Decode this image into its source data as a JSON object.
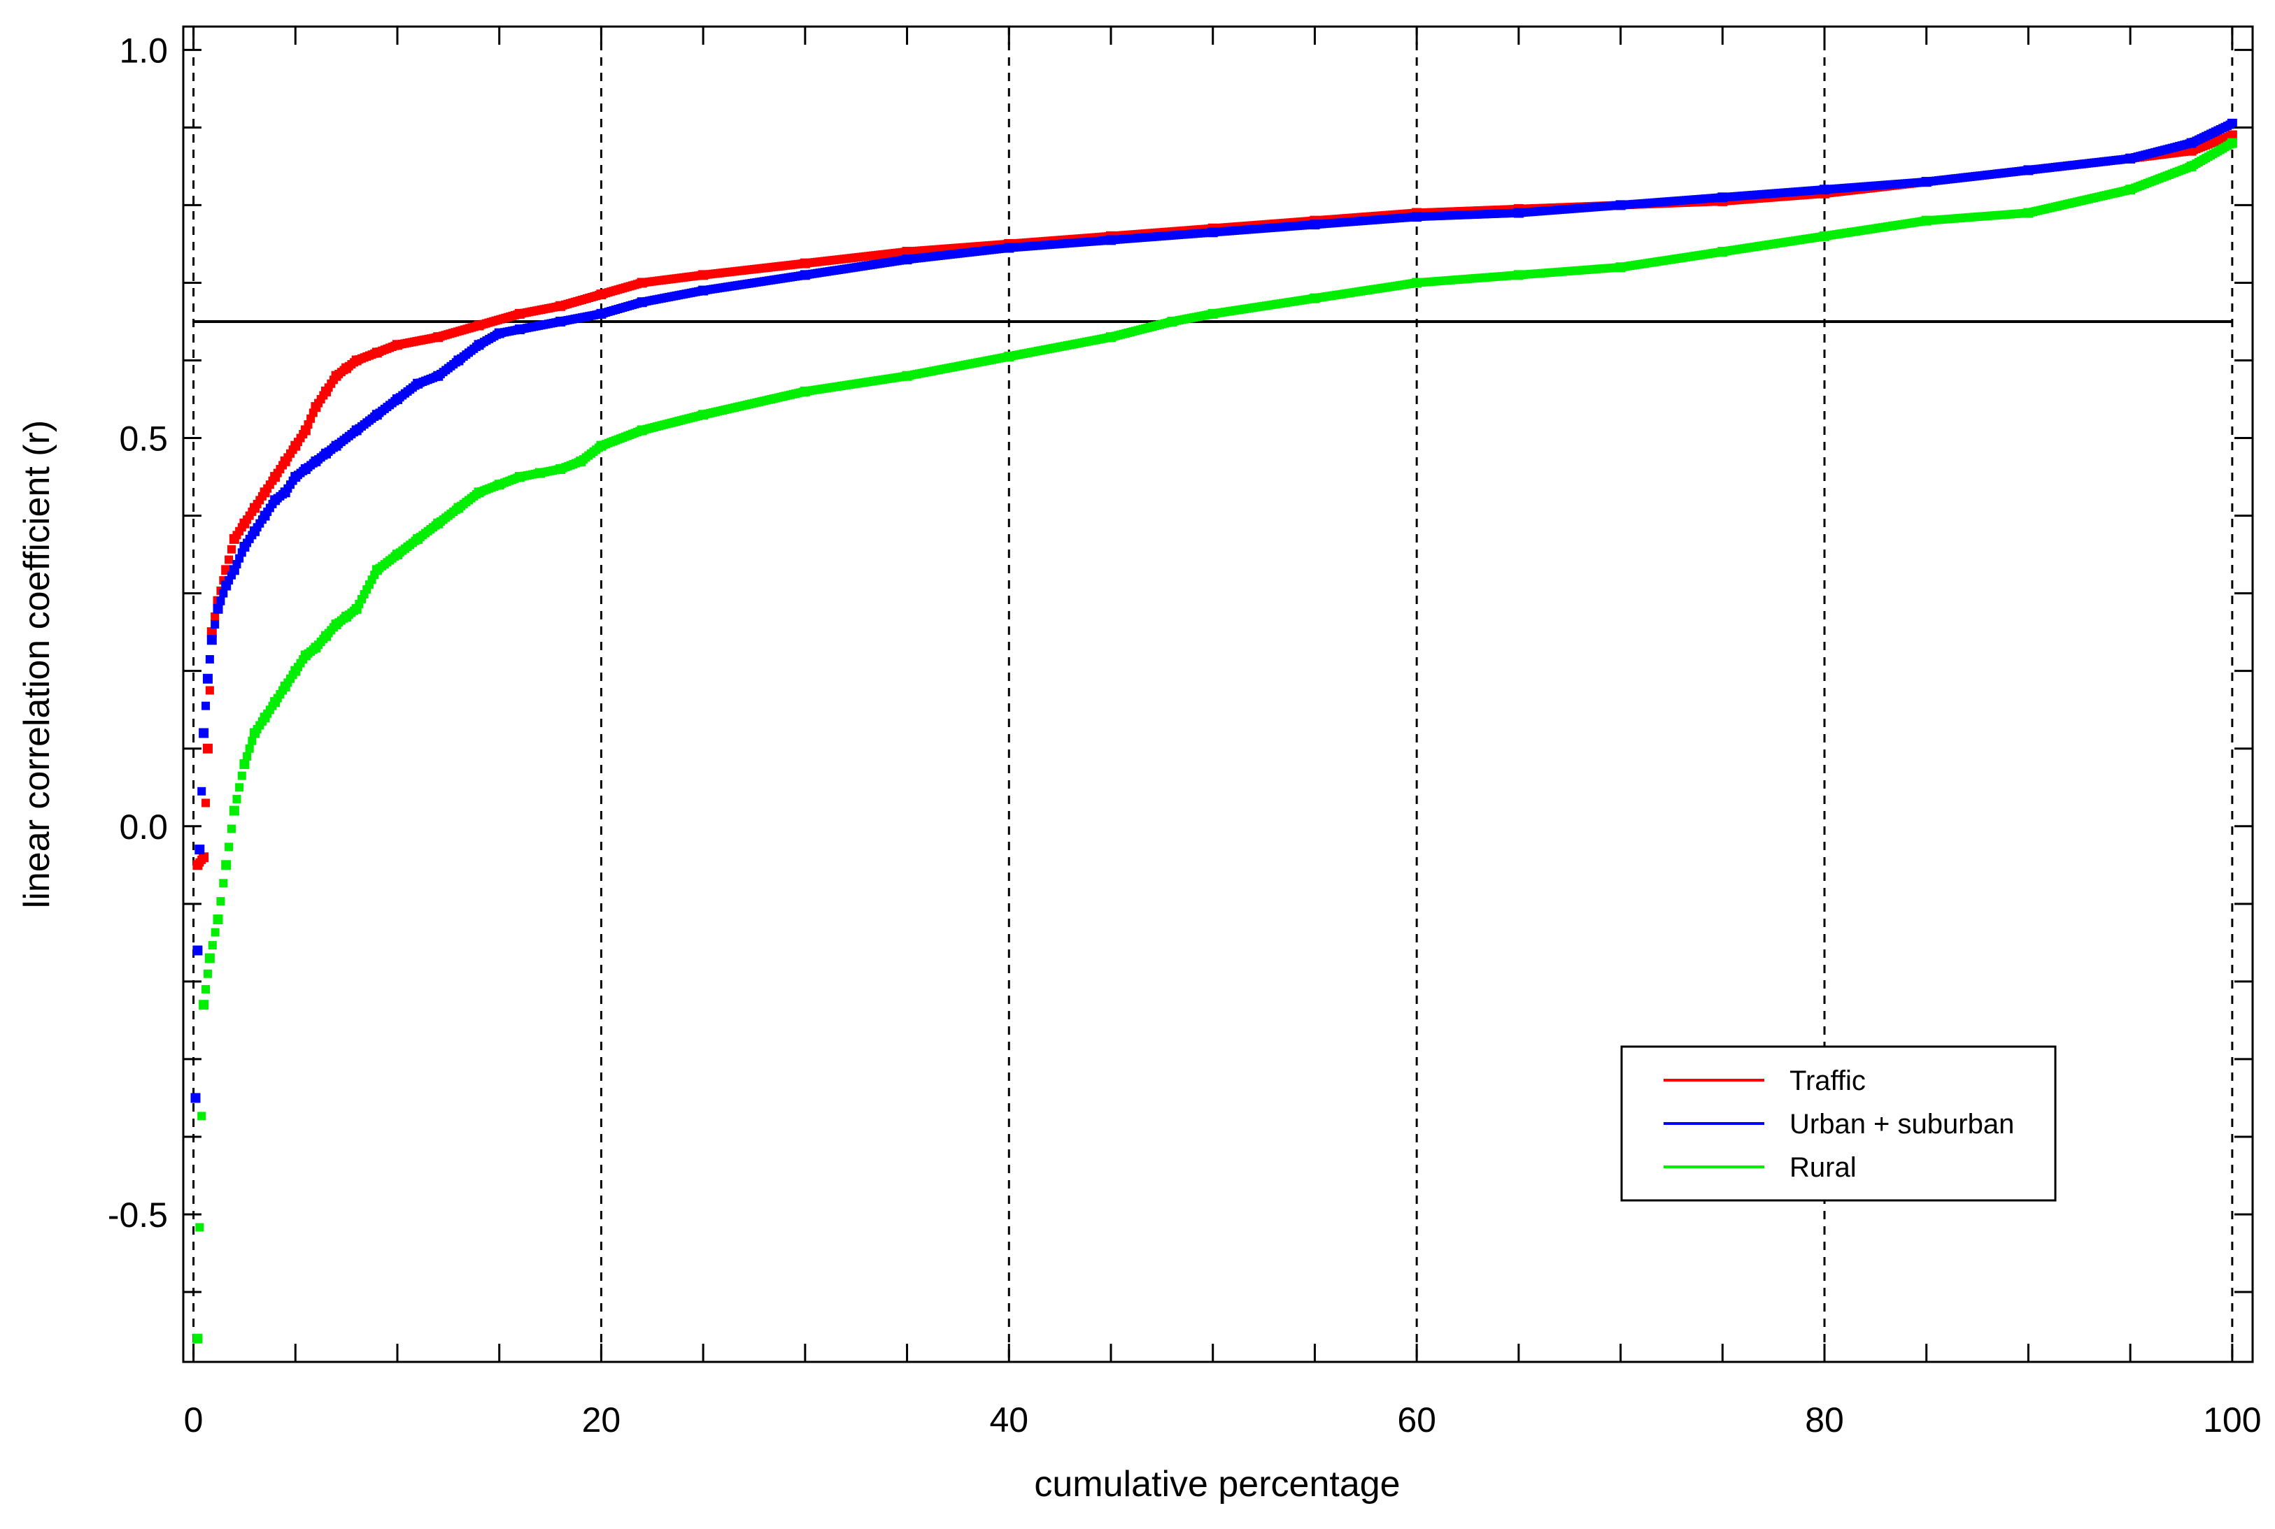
{
  "chart_data": {
    "type": "scatter",
    "xlabel": "cumulative percentage",
    "ylabel": "linear correlation coefficient (r)",
    "xlim": [
      -0.5,
      101
    ],
    "ylim": [
      -0.69,
      1.03
    ],
    "xticks": [
      0,
      20,
      40,
      60,
      80,
      100
    ],
    "xtick_labels": [
      "0",
      "20",
      "40",
      "60",
      "80",
      "100"
    ],
    "yticks": [
      1.0,
      0.5,
      0.0,
      -0.5
    ],
    "ytick_labels": [
      "1.0",
      "0.5",
      "0.0",
      "-0.5"
    ],
    "vertical_gridlines": [
      0,
      20,
      40,
      60,
      80,
      100
    ],
    "reference_line_y": 0.65,
    "legend": {
      "placement": "bottom-right"
    },
    "series": [
      {
        "name": "Traffic",
        "color": "#ff0000",
        "x": [
          0.2,
          0.5,
          0.7,
          0.9,
          1.2,
          1.6,
          2,
          2.5,
          3,
          3.5,
          4,
          4.5,
          5,
          5.5,
          6,
          6.5,
          7,
          7.5,
          8,
          9,
          10,
          12,
          14,
          16,
          18,
          20,
          22,
          25,
          30,
          35,
          40,
          45,
          50,
          55,
          60,
          65,
          70,
          75,
          80,
          85,
          90,
          95,
          98,
          100
        ],
        "y": [
          -0.05,
          -0.04,
          0.1,
          0.25,
          0.29,
          0.33,
          0.37,
          0.39,
          0.41,
          0.43,
          0.45,
          0.47,
          0.49,
          0.51,
          0.54,
          0.56,
          0.58,
          0.59,
          0.6,
          0.61,
          0.62,
          0.63,
          0.645,
          0.66,
          0.67,
          0.685,
          0.7,
          0.71,
          0.725,
          0.74,
          0.75,
          0.76,
          0.77,
          0.78,
          0.79,
          0.795,
          0.8,
          0.805,
          0.815,
          0.83,
          0.845,
          0.86,
          0.87,
          0.89
        ]
      },
      {
        "name": "Urban + suburban",
        "color": "#0000ff",
        "x": [
          0.1,
          0.2,
          0.3,
          0.5,
          0.7,
          0.9,
          1.2,
          1.6,
          2,
          2.5,
          3,
          3.5,
          4,
          4.5,
          5,
          5.5,
          6,
          6.5,
          7,
          8,
          9,
          10,
          11,
          12,
          13,
          14,
          15,
          16,
          18,
          20,
          22,
          25,
          30,
          35,
          40,
          45,
          50,
          55,
          60,
          65,
          70,
          75,
          80,
          85,
          90,
          95,
          98,
          100
        ],
        "y": [
          -0.35,
          -0.16,
          -0.03,
          0.12,
          0.19,
          0.24,
          0.28,
          0.31,
          0.33,
          0.36,
          0.38,
          0.4,
          0.42,
          0.43,
          0.45,
          0.46,
          0.47,
          0.48,
          0.49,
          0.51,
          0.53,
          0.55,
          0.57,
          0.58,
          0.6,
          0.62,
          0.635,
          0.64,
          0.65,
          0.66,
          0.675,
          0.69,
          0.71,
          0.73,
          0.745,
          0.755,
          0.765,
          0.775,
          0.785,
          0.79,
          0.8,
          0.81,
          0.82,
          0.83,
          0.845,
          0.86,
          0.88,
          0.905
        ]
      },
      {
        "name": "Rural",
        "color": "#00ee00",
        "x": [
          0.2,
          0.5,
          0.8,
          1.2,
          1.6,
          2,
          2.5,
          3,
          3.5,
          4,
          4.5,
          5,
          5.5,
          6,
          6.5,
          7,
          7.5,
          8,
          9,
          10,
          11,
          12,
          13,
          14,
          15,
          16,
          17,
          18,
          19,
          20,
          22,
          25,
          30,
          35,
          40,
          45,
          48,
          50,
          55,
          60,
          65,
          70,
          75,
          80,
          85,
          90,
          95,
          98,
          100
        ],
        "y": [
          -0.66,
          -0.23,
          -0.17,
          -0.12,
          -0.05,
          0.02,
          0.08,
          0.12,
          0.14,
          0.16,
          0.18,
          0.2,
          0.22,
          0.23,
          0.245,
          0.26,
          0.27,
          0.28,
          0.33,
          0.35,
          0.37,
          0.39,
          0.41,
          0.43,
          0.44,
          0.45,
          0.455,
          0.46,
          0.47,
          0.49,
          0.51,
          0.53,
          0.56,
          0.58,
          0.605,
          0.63,
          0.65,
          0.66,
          0.68,
          0.7,
          0.71,
          0.72,
          0.74,
          0.76,
          0.78,
          0.79,
          0.82,
          0.85,
          0.88
        ]
      }
    ]
  }
}
